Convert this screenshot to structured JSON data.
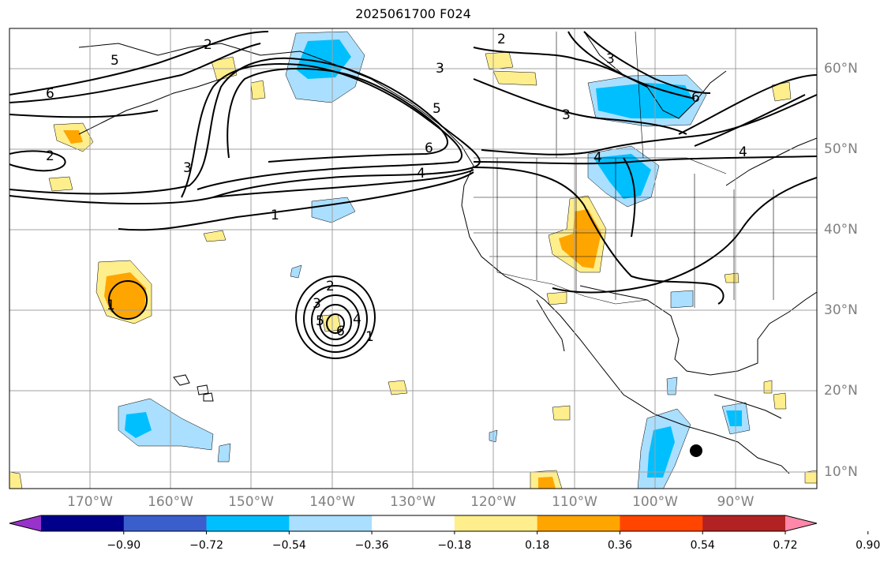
{
  "title": "2025061700 F024",
  "map": {
    "lon_labels": [
      "170°W",
      "160°W",
      "150°W",
      "140°W",
      "130°W",
      "120°W",
      "110°W",
      "100°W",
      "90°W"
    ],
    "lat_labels": [
      "60°N",
      "50°N",
      "40°N",
      "30°N",
      "20°N",
      "10°N"
    ],
    "contour_labels": [
      "6",
      "2",
      "5",
      "2",
      "3",
      "3",
      "5",
      "6",
      "3",
      "6",
      "4",
      "3",
      "2",
      "1",
      "4",
      "4",
      "2",
      "1",
      "3",
      "4",
      "5",
      "6",
      "1"
    ],
    "colors": {
      "pos_018_036": "#ffee8c",
      "pos_036_054": "#ffa500",
      "neg_018_036": "#aadfff",
      "neg_036_054": "#00bfff",
      "contour": "#000000",
      "grid": "#a0a0a0"
    },
    "marker": "filled-circle"
  },
  "colorbar": {
    "ticks": [
      "−0.90",
      "−0.72",
      "−0.54",
      "−0.36",
      "−0.18",
      "0.18",
      "0.36",
      "0.54",
      "0.72",
      "0.90"
    ],
    "colors": [
      "#9932cc",
      "#00008b",
      "#3a5fcd",
      "#00bfff",
      "#aadfff",
      "#ffffff",
      "#ffee8c",
      "#ffa500",
      "#ff4500",
      "#b22222",
      "#ff88aa"
    ]
  }
}
